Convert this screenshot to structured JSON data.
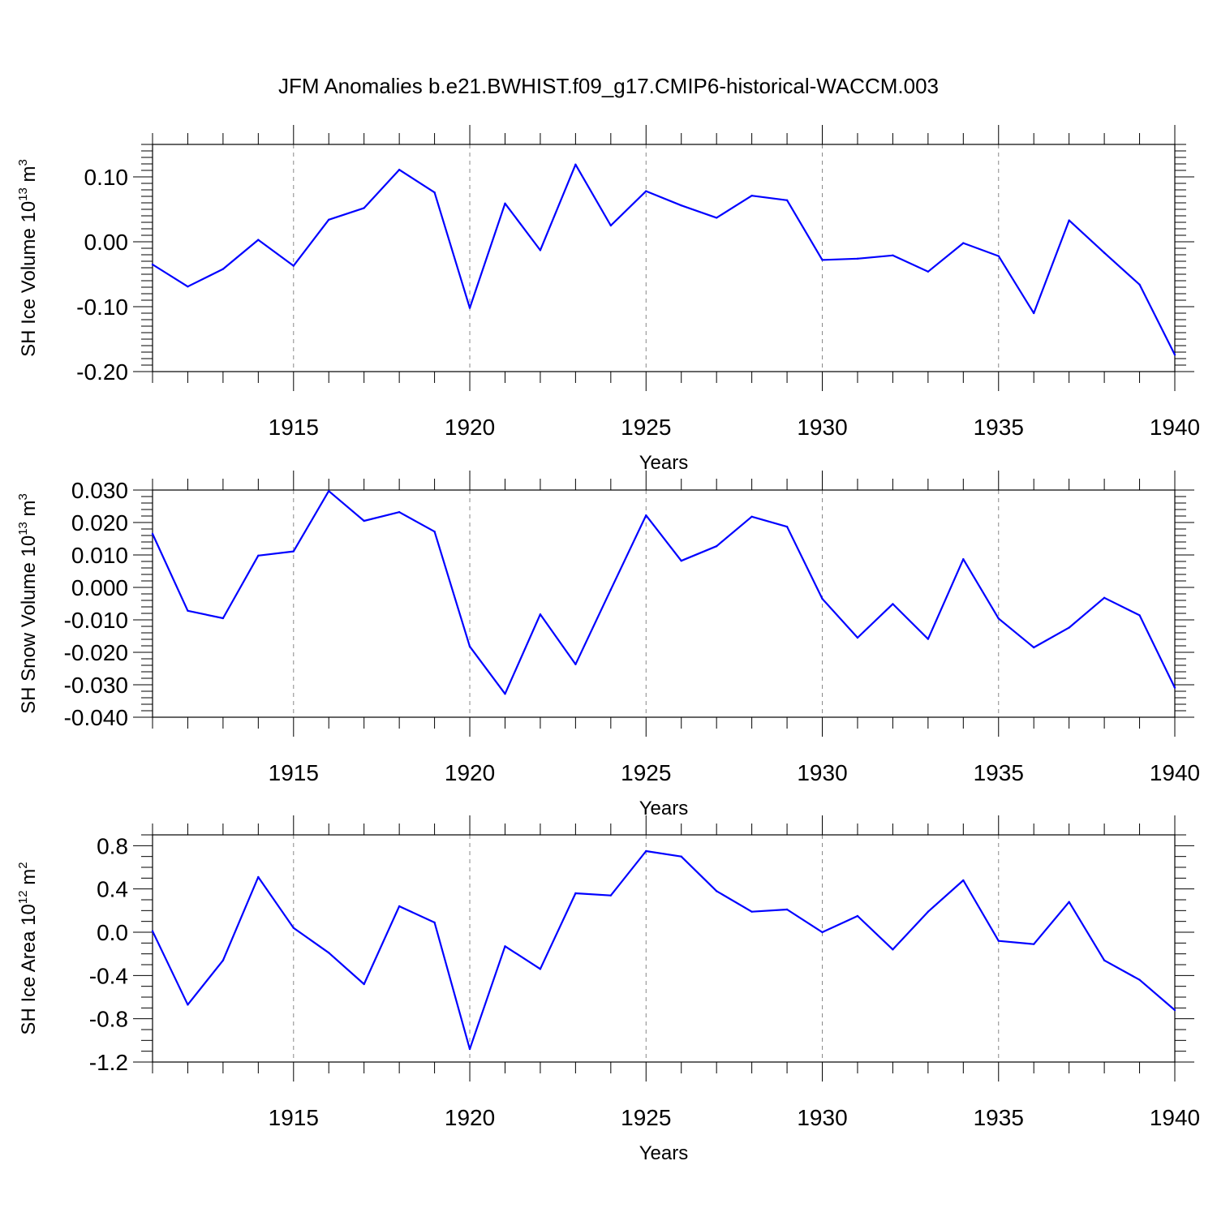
{
  "title": "JFM Anomalies b.e21.BWHIST.f09_g17.CMIP6-historical-WACCM.003",
  "colors": {
    "series": "#0000ff",
    "axes": "#000000",
    "grid": "#888888"
  },
  "chart_data": [
    {
      "type": "line",
      "name": "ice-volume",
      "ylabel_main": "SH Ice Volume 10",
      "ylabel_sup": "13",
      "ylabel_unit": " m",
      "ylabel_unit_sup": "3",
      "xlabel": "Years",
      "xlim": [
        1911,
        1940
      ],
      "ylim": [
        -0.2,
        0.15
      ],
      "yticks": [
        -0.2,
        -0.1,
        0.0,
        0.1
      ],
      "ytick_labels": [
        "-0.20",
        "-0.10",
        "0.00",
        "0.10"
      ],
      "yminor_step": 0.01,
      "xticks": [
        1915,
        1920,
        1925,
        1930,
        1935,
        1940
      ],
      "xtick_labels": [
        "1915",
        "1920",
        "1925",
        "1930",
        "1935",
        "1940"
      ],
      "x": [
        1911,
        1912,
        1913,
        1914,
        1915,
        1916,
        1917,
        1918,
        1919,
        1920,
        1921,
        1922,
        1923,
        1924,
        1925,
        1926,
        1927,
        1928,
        1929,
        1930,
        1931,
        1932,
        1933,
        1934,
        1935,
        1936,
        1937,
        1938,
        1939,
        1940
      ],
      "values": [
        -0.035,
        -0.069,
        -0.042,
        0.003,
        -0.037,
        0.034,
        0.052,
        0.111,
        0.076,
        -0.102,
        0.059,
        -0.013,
        0.119,
        0.025,
        0.078,
        0.056,
        0.037,
        0.071,
        0.064,
        -0.028,
        -0.026,
        -0.021,
        -0.046,
        -0.002,
        -0.022,
        -0.11,
        0.033,
        -0.017,
        -0.066,
        -0.174
      ]
    },
    {
      "type": "line",
      "name": "snow-volume",
      "ylabel_main": "SH Snow Volume 10",
      "ylabel_sup": "13",
      "ylabel_unit": " m",
      "ylabel_unit_sup": "3",
      "xlabel": "Years",
      "xlim": [
        1911,
        1940
      ],
      "ylim": [
        -0.04,
        0.03
      ],
      "yticks": [
        -0.04,
        -0.03,
        -0.02,
        -0.01,
        0.0,
        0.01,
        0.02,
        0.03
      ],
      "ytick_labels": [
        "-0.040",
        "-0.030",
        "-0.020",
        "-0.010",
        "0.000",
        "0.010",
        "0.020",
        "0.030"
      ],
      "yminor_step": 0.002,
      "xticks": [
        1915,
        1920,
        1925,
        1930,
        1935,
        1940
      ],
      "xtick_labels": [
        "1915",
        "1920",
        "1925",
        "1930",
        "1935",
        "1940"
      ],
      "x": [
        1911,
        1912,
        1913,
        1914,
        1915,
        1916,
        1917,
        1918,
        1919,
        1920,
        1921,
        1922,
        1923,
        1924,
        1925,
        1926,
        1927,
        1928,
        1929,
        1930,
        1931,
        1932,
        1933,
        1934,
        1935,
        1936,
        1937,
        1938,
        1939,
        1940
      ],
      "values": [
        0.0165,
        -0.0072,
        -0.0095,
        0.0098,
        0.0111,
        0.0297,
        0.0205,
        0.0232,
        0.0172,
        -0.0182,
        -0.0328,
        -0.0083,
        -0.0237,
        -0.0007,
        0.0222,
        0.0082,
        0.0127,
        0.0218,
        0.0187,
        -0.0035,
        -0.0155,
        -0.0051,
        -0.0159,
        0.0087,
        -0.0096,
        -0.0185,
        -0.0124,
        -0.0032,
        -0.0086,
        -0.0309
      ]
    },
    {
      "type": "line",
      "name": "ice-area",
      "ylabel_main": "SH Ice Area 10",
      "ylabel_sup": "12",
      "ylabel_unit": " m",
      "ylabel_unit_sup": "2",
      "xlabel": "Years",
      "xlim": [
        1911,
        1940
      ],
      "ylim": [
        -1.2,
        0.9
      ],
      "yticks": [
        -1.2,
        -0.8,
        -0.4,
        0.0,
        0.4,
        0.8
      ],
      "ytick_labels": [
        "-1.2",
        "-0.8",
        "-0.4",
        "0.0",
        "0.4",
        "0.8"
      ],
      "yminor_step": 0.1,
      "xticks": [
        1915,
        1920,
        1925,
        1930,
        1935,
        1940
      ],
      "xtick_labels": [
        "1915",
        "1920",
        "1925",
        "1930",
        "1935",
        "1940"
      ],
      "x": [
        1911,
        1912,
        1913,
        1914,
        1915,
        1916,
        1917,
        1918,
        1919,
        1920,
        1921,
        1922,
        1923,
        1924,
        1925,
        1926,
        1927,
        1928,
        1929,
        1930,
        1931,
        1932,
        1933,
        1934,
        1935,
        1936,
        1937,
        1938,
        1939,
        1940
      ],
      "values": [
        0.01,
        -0.67,
        -0.26,
        0.51,
        0.04,
        -0.19,
        -0.48,
        0.24,
        0.09,
        -1.08,
        -0.13,
        -0.34,
        0.36,
        0.34,
        0.75,
        0.7,
        0.38,
        0.19,
        0.21,
        0.0,
        0.15,
        -0.16,
        0.19,
        0.48,
        -0.08,
        -0.11,
        0.28,
        -0.26,
        -0.44,
        -0.72
      ]
    }
  ]
}
